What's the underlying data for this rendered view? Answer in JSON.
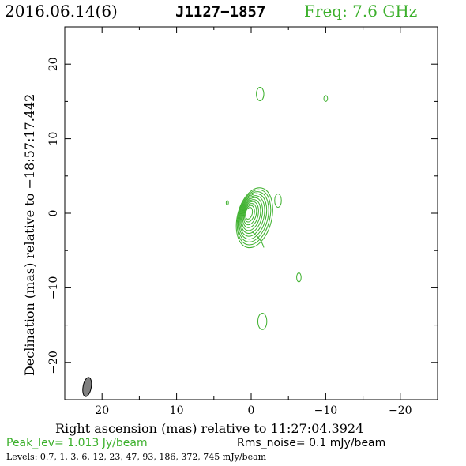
{
  "header": {
    "date": "2016.06.14(6)",
    "source": "J1127−1857",
    "freq": "Freq: 7.6 GHz"
  },
  "footer": {
    "peak": "Peak_lev=  1.013 Jy/beam",
    "rms": "Rms_noise=  0.1 mJy/beam",
    "levels": "Levels: 0.7,   1,   3,   6,   12,   23,   47,   93, 186, 372, 745 mJy/beam"
  },
  "colors": {
    "contour": "#3cb02c",
    "beam": "#808080",
    "axes": "#000000"
  },
  "chart_data": {
    "type": "contour",
    "xlabel": "Right ascension (mas) relative to 11:27:04.3924",
    "ylabel": "Declination (mas) relative to −18:57:17.442",
    "xlim": [
      25,
      -25
    ],
    "ylim": [
      -25,
      25
    ],
    "x_ticks": [
      20,
      10,
      0,
      -10,
      -20
    ],
    "y_ticks": [
      20,
      10,
      0,
      -10,
      -20
    ],
    "x_tick_labels": [
      "20",
      "10",
      "0",
      "−10",
      "−20"
    ],
    "y_tick_labels": [
      "20",
      "10",
      "0",
      "−10",
      "−20"
    ],
    "contour_levels_mJy": [
      0.7,
      1,
      3,
      6,
      12,
      23,
      47,
      93,
      186,
      372,
      745
    ],
    "core": {
      "x": 0.3,
      "y": 0.0,
      "rings": 11
    },
    "jet": [
      {
        "x": -1.2,
        "y": 16.0,
        "w": 0.5,
        "h": 0.9
      },
      {
        "x": -10.0,
        "y": 15.4,
        "w": 0.25,
        "h": 0.4
      },
      {
        "x": -3.6,
        "y": 1.7,
        "w": 0.45,
        "h": 0.9
      },
      {
        "x": 3.2,
        "y": 1.4,
        "w": 0.15,
        "h": 0.3
      },
      {
        "x": -6.4,
        "y": -8.6,
        "w": 0.3,
        "h": 0.6
      },
      {
        "x": -1.5,
        "y": -14.5,
        "w": 0.6,
        "h": 1.1
      }
    ],
    "beam": {
      "x": 22.0,
      "y": -23.3,
      "major": 2.6,
      "minor": 1.1,
      "pa_deg": 10
    }
  }
}
